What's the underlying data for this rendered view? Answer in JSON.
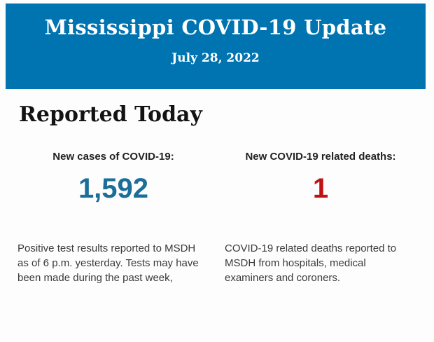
{
  "banner": {
    "title": "Mississippi COVID-19 Update",
    "date": "July 28, 2022",
    "background_color": "#0074b0",
    "text_color": "#ffffff"
  },
  "section": {
    "heading": "Reported Today"
  },
  "stats": [
    {
      "label": "New cases of COVID-19:",
      "value": "1,592",
      "value_color": "#1b6d9a",
      "description": "Positive test results reported to MSDH as of 6 p.m. yesterday. Tests may have been made during the past week,"
    },
    {
      "label": "New COVID-19 related deaths:",
      "value": "1",
      "value_color": "#c01212",
      "description": "COVID-19 related deaths reported to MSDH from hospitals, medical examiners and coroners."
    }
  ]
}
